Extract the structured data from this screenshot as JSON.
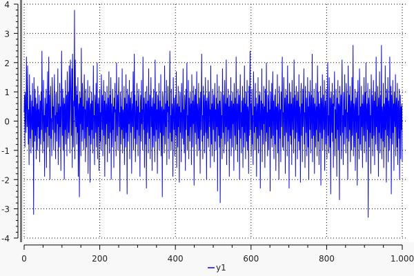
{
  "chart_data": {
    "type": "line",
    "title": "",
    "xlabel": "",
    "ylabel": "",
    "xlim": [
      0,
      1000
    ],
    "ylim": [
      -4,
      4
    ],
    "xticks": [
      "0",
      "200",
      "400",
      "600",
      "800",
      "1.000"
    ],
    "xtick_values": [
      0,
      200,
      400,
      600,
      800,
      1000
    ],
    "yticks": [
      "4",
      "3",
      "2",
      "1",
      "0",
      "-1",
      "-2",
      "-3",
      "-4"
    ],
    "ytick_values": [
      4,
      3,
      2,
      1,
      0,
      -1,
      -2,
      -3,
      -4
    ],
    "grid": true,
    "legend": "bottom-center",
    "color": "#0000ff",
    "series": [
      {
        "name": "y1",
        "values": [
          0.3,
          0.9,
          -0.9,
          1.0,
          0.2,
          -0.4,
          2.2,
          0.6,
          -0.2,
          1.9,
          0.1,
          -0.8,
          0.4,
          -1.5,
          1.6,
          0.3,
          -0.6,
          0.9,
          -1.1,
          0.0,
          0.7,
          -0.3,
          1.3,
          -0.9,
          0.5,
          -3.2,
          1.5,
          0.2,
          -0.7,
          1.1,
          -0.5,
          0.8,
          -1.3,
          0.3,
          0.6,
          -1.0,
          1.2,
          -0.2,
          0.4,
          -0.6,
          0.9,
          -1.4,
          0.2,
          0.7,
          -0.8,
          1.0,
          -0.3,
          2.4,
          0.5,
          -1.1,
          0.3,
          1.4,
          -0.7,
          0.2,
          -1.9,
          0.8,
          0.1,
          -0.4,
          1.1,
          -1.6,
          0.6,
          -0.2,
          1.7,
          -0.9,
          0.3,
          2.2,
          -0.5,
          0.9,
          -2.0,
          0.4,
          1.2,
          -0.6,
          0.1,
          -1.2,
          1.5,
          0.7,
          -0.3,
          0.5,
          -1.0,
          0.8,
          1.6,
          -0.4,
          0.2,
          -1.3,
          0.9,
          1.0,
          -0.7,
          0.3,
          -0.1,
          1.8,
          -1.5,
          0.6,
          0.2,
          -0.9,
          1.3,
          -0.2,
          0.5,
          -1.7,
          0.7,
          2.4,
          0.1,
          -0.5,
          1.1,
          -1.0,
          0.4,
          0.8,
          -2.0,
          0.6,
          -0.3,
          1.4,
          -0.8,
          0.2,
          0.9,
          -1.2,
          1.7,
          0.3,
          -0.6,
          1.0,
          -0.4,
          1.9,
          0.4,
          -1.1,
          2.1,
          1.4,
          0.6,
          -0.5,
          1.8,
          -1.6,
          2.3,
          0.2,
          -0.9,
          0.7,
          0.5,
          3.8,
          -1.3,
          2.1,
          0.4,
          -0.2,
          1.2,
          -0.8,
          0.9,
          -0.4,
          1.5,
          -1.9,
          0.3,
          0.6,
          -2.6,
          1.0,
          -0.1,
          0.8,
          -1.2,
          2.5,
          0.2,
          -0.7,
          1.3,
          -0.3,
          0.5,
          -1.0,
          0.9,
          1.6,
          -0.6,
          0.4,
          -1.4,
          1.1,
          0.2,
          -0.9,
          0.7,
          -0.2,
          1.4,
          -1.8,
          0.5,
          0.8,
          -0.5,
          1.2,
          -2.1,
          0.3,
          0.6,
          -0.8,
          1.0,
          -0.3,
          0.7,
          -1.1,
          0.4,
          1.9,
          -0.6,
          0.2,
          -1.5,
          0.9,
          0.5,
          -0.4,
          1.3,
          -0.9,
          0.1,
          2.0,
          -1.3,
          0.6,
          -0.2,
          0.8,
          -1.7,
          0.4,
          1.1,
          -0.7,
          0.3,
          -1.0,
          1.6,
          0.5,
          -0.3,
          0.9,
          -1.2,
          0.2,
          1.4,
          -0.5,
          0.7,
          -1.9,
          1.0,
          0.3,
          -0.8,
          0.6,
          -0.1,
          1.2,
          -1.4,
          0.4,
          0.8,
          -0.6,
          1.7,
          -1.1,
          0.2,
          0.9,
          -0.4,
          1.5,
          -2.0,
          0.6,
          0.1,
          -0.9,
          1.1,
          -0.3,
          0.5,
          -1.6,
          0.8,
          0.3,
          1.3,
          -0.7,
          0.4,
          -1.2,
          2.0,
          0.2,
          -0.5,
          0.9,
          -1.0,
          0.6,
          1.5,
          -0.2,
          0.3,
          -2.4,
          1.0,
          0.7,
          -0.8,
          0.5,
          -0.3,
          1.8,
          -1.1,
          0.4,
          0.2,
          -0.6,
          1.2,
          -1.5,
          0.8,
          0.3,
          -0.9,
          1.6,
          -0.4,
          0.6,
          -2.5,
          1.1,
          0.2,
          -0.7,
          0.9,
          -0.1,
          1.4,
          -1.3,
          0.5,
          0.8,
          -0.4,
          1.0,
          -1.8,
          0.3,
          0.6,
          -0.2,
          1.7,
          -1.0,
          0.4,
          2.3,
          -0.6,
          0.9,
          -1.4,
          0.2,
          0.7,
          -0.8,
          1.3,
          -0.3,
          0.5,
          -1.2,
          0.8,
          1.1,
          -0.5,
          0.3,
          -1.9,
          0.6,
          0.9,
          -0.7,
          1.4,
          -0.1,
          0.4,
          -1.0,
          2.2,
          0.5,
          -0.3,
          0.8,
          -1.6,
          0.2,
          1.0,
          -0.8,
          0.6,
          -2.3,
          1.2,
          0.3,
          -0.4,
          0.7,
          -1.1,
          1.8,
          0.1,
          -0.6,
          0.9,
          -1.3,
          0.4,
          1.5,
          -0.2,
          0.5,
          -1.7,
          0.8,
          0.3,
          -0.9,
          1.1,
          -0.5,
          0.6,
          -1.4,
          2.1,
          0.2,
          -0.7,
          1.0,
          -0.3,
          0.4,
          -1.8,
          0.9,
          0.6,
          -0.6,
          1.3,
          -1.0,
          0.2,
          0.7,
          -0.4,
          1.6,
          -1.2,
          0.5,
          0.3,
          -2.6,
          1.0,
          0.8,
          -0.5,
          0.4,
          -1.1,
          1.9,
          0.2,
          -0.8,
          0.6,
          -0.2,
          1.4,
          -1.5,
          0.7,
          0.3,
          1.2,
          -0.6,
          0.5,
          -1.3,
          0.9,
          2.4,
          -0.4,
          0.2,
          -1.0,
          1.1,
          -0.7,
          0.6,
          0.3,
          -1.9,
          1.5,
          0.4,
          -0.3,
          0.8,
          -1.2,
          0.1,
          0.9,
          -0.5,
          1.7,
          -1.6,
          0.4,
          0.6,
          -0.9,
          1.2,
          -0.2,
          0.5,
          -2.1,
          0.8,
          1.0,
          -0.4,
          0.3,
          -1.4,
          1.3,
          0.7,
          -0.6,
          0.2,
          1.8,
          -0.8,
          0.4,
          -1.1,
          0.9,
          0.5,
          -1.7,
          1.1,
          -0.3,
          0.6,
          2.0,
          -1.0,
          0.2,
          -0.5,
          1.4,
          -1.3,
          0.8,
          0.3,
          -0.7,
          1.0,
          -0.2,
          0.6,
          -1.5,
          1.6,
          0.4,
          -0.9,
          0.7,
          -0.1,
          1.2,
          -2.2,
          0.5,
          0.9,
          -0.4,
          1.1,
          -0.8,
          0.3,
          1.7,
          -1.2,
          0.6,
          0.2,
          -0.6,
          1.3,
          -1.0,
          0.8,
          0.4,
          -1.8,
          1.0,
          -0.3,
          0.5,
          2.3,
          -0.7,
          0.2,
          -1.3,
          1.2,
          0.6,
          -0.5,
          0.9,
          -1.1,
          0.3,
          1.5,
          -0.4,
          0.7,
          -2.0,
          0.8,
          0.2,
          -0.6,
          1.4,
          -0.9,
          0.5,
          1.0,
          -0.2,
          0.4,
          -1.6,
          1.9,
          0.3,
          -0.8,
          0.6,
          -1.2,
          1.1,
          0.2,
          -0.3,
          0.9,
          -1.4,
          0.5,
          1.3,
          -0.7,
          0.4,
          -1.0,
          0.8,
          -0.2,
          1.6,
          -2.4,
          0.6,
          0.3,
          -0.5,
          1.2,
          -0.9,
          0.7,
          -2.8,
          0.4,
          1.0,
          -0.6,
          0.2,
          -1.3,
          1.8,
          0.5,
          -0.4,
          0.9,
          -1.1,
          0.3,
          1.4,
          -0.8,
          0.6,
          -0.2,
          2.1,
          -1.5,
          0.4,
          0.8,
          -0.7,
          1.1,
          -0.3,
          0.5,
          -1.9,
          0.9,
          0.2,
          -0.6,
          1.5,
          -1.2,
          0.7,
          0.4,
          -0.9,
          1.0,
          -0.1,
          0.6,
          -1.7,
          1.3,
          0.3,
          -0.5,
          0.8,
          -1.0,
          2.2,
          0.2,
          -0.8,
          0.6,
          -1.4,
          1.1,
          0.4,
          -0.3,
          0.9,
          -2.0,
          0.5,
          1.6,
          -0.6,
          0.3,
          -1.1,
          0.7,
          -0.2,
          1.2,
          -1.6,
          0.4,
          0.8,
          -0.9,
          1.9,
          -0.4,
          0.6,
          -1.3,
          1.0,
          0.2,
          -0.7,
          1.4,
          -1.0,
          0.5,
          0.3,
          -1.8,
          1.2,
          -0.5,
          0.9,
          2.4,
          -0.3,
          0.6,
          -1.2,
          0.4,
          1.1,
          -0.8,
          0.2,
          -1.5,
          1.7,
          0.7,
          -0.4,
          0.5,
          -1.0,
          1.3,
          -0.2,
          0.8,
          -1.9,
          0.3,
          0.6,
          -0.6,
          1.5,
          -1.1,
          0.4,
          0.9,
          -0.5,
          1.0,
          -2.3,
          0.2,
          0.7,
          -0.3,
          1.8,
          -1.4,
          0.6,
          0.3,
          -0.8,
          1.2,
          -0.1,
          0.5,
          -1.6,
          1.1,
          0.8,
          -0.7,
          2.0,
          -0.4,
          0.3,
          -1.2,
          0.9,
          0.6,
          -1.0,
          1.4,
          -0.2,
          0.4,
          -2.4,
          1.0,
          0.5,
          -0.6,
          1.3,
          -0.9,
          0.2,
          1.7,
          -0.5,
          0.7,
          -1.3,
          0.3,
          0.9,
          -0.8,
          1.1,
          -1.7,
          0.5,
          0.4,
          -0.3,
          1.6,
          -1.1,
          0.6,
          0.2,
          -2.0,
          1.2,
          0.8,
          -0.6,
          0.4,
          -1.4,
          1.0,
          -0.2,
          0.7,
          2.2,
          -0.9,
          0.3,
          -1.0,
          1.5,
          0.5,
          -0.5,
          0.8,
          -1.8,
          1.1,
          0.2,
          -0.4,
          0.9,
          -1.2,
          1.9,
          0.4,
          -0.7,
          0.6,
          -2.3,
          1.3,
          0.3,
          -0.5,
          1.0,
          -0.8,
          0.6,
          -1.5,
          1.4,
          0.2,
          -0.3,
          0.8,
          -1.1,
          2.1,
          0.5,
          -0.6,
          0.9,
          -1.9,
          0.4,
          1.2,
          -0.4,
          0.7,
          -1.3,
          1.0,
          0.3,
          -0.7,
          1.6,
          -1.0,
          0.5,
          0.2,
          -2.1,
          0.9,
          1.3,
          -0.5,
          0.6,
          -1.4,
          1.1,
          -0.2,
          0.4,
          1.8,
          -0.8,
          0.3,
          -1.6,
          1.2,
          0.6,
          -0.4,
          0.8,
          -1.2,
          0.2,
          1.5,
          -0.9,
          0.5,
          -2.0,
          1.0,
          0.7,
          -0.3,
          1.4,
          -1.1,
          0.4,
          0.9,
          -0.6,
          2.3,
          -1.4,
          0.3,
          0.8,
          -0.5,
          1.1,
          -1.8,
          0.6,
          0.2,
          -0.9,
          1.3,
          -0.3,
          0.5,
          -1.2,
          1.9,
          0.4,
          -0.7,
          1.0,
          -1.5,
          0.6,
          0.3,
          -0.4,
          1.2,
          -2.2,
          0.8,
          0.5,
          -0.6,
          1.6,
          -1.0,
          0.2,
          0.9,
          -0.3,
          1.4,
          -1.7,
          0.4,
          0.7,
          -0.8,
          1.1,
          0.3,
          -1.3,
          0.6,
          2.0,
          -0.5,
          0.2,
          -1.1,
          1.5,
          0.4,
          -0.9,
          0.8,
          -2.5,
          1.0,
          0.3,
          -0.4,
          1.3,
          -0.7,
          0.6,
          -1.6,
          0.9,
          0.5,
          1.7,
          -1.2,
          0.4,
          -0.6,
          1.1,
          0.2,
          -1.9,
          0.8,
          -0.3,
          1.4,
          -1.0,
          0.6,
          0.5,
          -2.7,
          1.2,
          0.3,
          -0.5,
          0.9,
          -1.3,
          0.7,
          2.1,
          -0.4,
          0.2,
          -1.5,
          1.0,
          0.6,
          -0.8,
          1.6,
          -0.2,
          0.4,
          -1.1,
          1.3,
          0.8,
          -0.6,
          0.3,
          -2.0,
          1.9,
          0.5,
          -0.7,
          0.9,
          -0.3,
          1.2,
          -1.4,
          0.4,
          0.7,
          -1.0,
          1.5,
          -0.5,
          0.2,
          2.6,
          -1.2,
          0.6,
          0.3,
          -0.9,
          1.1,
          -1.7,
          0.5,
          0.8,
          -0.4,
          1.0,
          -2.2,
          0.4,
          1.4,
          -0.6,
          0.2,
          -1.3,
          1.8,
          0.7,
          -0.8,
          0.5,
          -1.0,
          1.2,
          -0.2,
          0.6,
          -1.6,
          0.9,
          0.3,
          -0.5,
          1.5,
          -1.1,
          0.4,
          1.0,
          -0.7,
          2.0,
          -1.4,
          0.3,
          0.6,
          -0.3,
          1.3,
          -3.3,
          0.8,
          0.5,
          -0.9,
          1.1,
          -0.4,
          0.2,
          -1.8,
          1.6,
          0.6,
          -0.6,
          0.9,
          -1.2,
          0.4,
          1.4,
          -0.5,
          0.7,
          -1.5,
          1.0,
          0.3,
          -0.8,
          2.2,
          -0.2,
          0.5,
          -1.0,
          1.2,
          0.6,
          -1.9,
          0.8,
          -0.4,
          1.7,
          -1.1,
          0.3,
          0.9,
          -0.6,
          2.6,
          -1.3,
          0.5,
          0.2,
          -0.7,
          1.3,
          -1.6,
          0.6,
          0.4,
          -0.9,
          1.9,
          -0.3,
          0.8,
          -2.1,
          1.1,
          0.5,
          -0.5,
          1.5,
          -1.4,
          0.7,
          0.3,
          -1.0,
          2.2,
          0.4,
          -0.6,
          1.2,
          -2.5,
          0.9,
          0.2,
          -0.8,
          1.4,
          -0.4,
          0.6,
          -1.7,
          1.0,
          0.3,
          -0.2,
          1.6,
          -1.2,
          0.5,
          0.8,
          -0.9,
          1.3,
          -1.5,
          0.4,
          0.7,
          -0.6,
          1.1,
          -2.0,
          0.2,
          0.9,
          -1.3,
          0.5,
          -0.3,
          0.6,
          -1.4
        ]
      }
    ]
  }
}
